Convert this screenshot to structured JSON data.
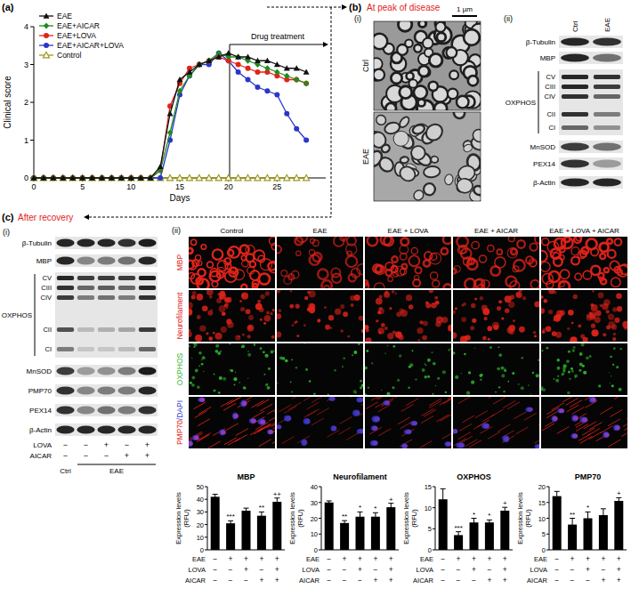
{
  "chart_data": [
    {
      "type": "line",
      "x_label": "Days",
      "y_label": "Clinical score",
      "x": [
        0,
        1,
        2,
        3,
        4,
        5,
        6,
        7,
        8,
        9,
        10,
        11,
        12,
        13,
        14,
        15,
        16,
        17,
        18,
        19,
        20,
        21,
        22,
        23,
        24,
        25,
        26,
        27,
        28
      ],
      "xlim": [
        0,
        30
      ],
      "xticks": [
        0,
        5,
        10,
        15,
        20,
        25
      ],
      "ylim": [
        0,
        4
      ],
      "yticks": [
        0,
        1,
        2,
        3,
        4
      ],
      "legend": "top-left",
      "annotations": [
        "Drug treatment"
      ],
      "series": [
        {
          "name": "EAE",
          "color": "#111111",
          "marker": "triangle",
          "values": [
            0,
            0,
            0,
            0,
            0,
            0,
            0,
            0,
            0,
            0,
            0,
            0,
            0,
            0.3,
            1.7,
            2.6,
            2.8,
            3.0,
            3.1,
            3.2,
            3.3,
            3.2,
            3.2,
            3.1,
            3.1,
            3.0,
            2.9,
            2.9,
            2.8
          ]
        },
        {
          "name": "EAE+AICAR",
          "color": "#1e8c1e",
          "marker": "diamond",
          "values": [
            0,
            0,
            0,
            0,
            0,
            0,
            0,
            0,
            0,
            0,
            0,
            0,
            0,
            0.2,
            1.2,
            2.3,
            2.7,
            3.0,
            3.1,
            3.3,
            3.2,
            3.2,
            3.1,
            3.0,
            2.9,
            2.8,
            2.7,
            2.6,
            2.5
          ]
        },
        {
          "name": "EAE+LOVA",
          "color": "#e2231a",
          "marker": "circle",
          "values": [
            0,
            0,
            0,
            0,
            0,
            0,
            0,
            0,
            0,
            0,
            0,
            0,
            0,
            0.2,
            1.9,
            2.5,
            2.9,
            3.0,
            3.1,
            3.2,
            3.1,
            3.0,
            2.9,
            2.8,
            2.8,
            2.7,
            2.6,
            2.6,
            2.5
          ]
        },
        {
          "name": "EAE+AICAR+LOVA",
          "color": "#2b36c9",
          "marker": "circle",
          "values": [
            0,
            0,
            0,
            0,
            0,
            0,
            0,
            0,
            0,
            0,
            0,
            0,
            0,
            0.0,
            1.0,
            2.2,
            2.7,
            3.0,
            3.0,
            3.3,
            3.1,
            2.8,
            2.6,
            2.4,
            2.3,
            2.2,
            1.7,
            1.3,
            1.0
          ]
        },
        {
          "name": "Control",
          "color": "#9a9a1e",
          "marker": "triangle-open",
          "values": [
            0,
            0,
            0,
            0,
            0,
            0,
            0,
            0,
            0,
            0,
            0,
            0,
            0,
            0,
            0,
            0,
            0,
            0,
            0,
            0,
            0,
            0,
            0,
            0,
            0,
            0,
            0,
            0,
            0
          ]
        }
      ]
    },
    {
      "type": "bar",
      "title": "MBP",
      "y_label": [
        "Expression levels",
        "(RFU)"
      ],
      "categories": [
        null,
        null,
        null,
        null,
        null
      ],
      "values": [
        42,
        21,
        31,
        27,
        38
      ],
      "errors": [
        2,
        2,
        2,
        3,
        3
      ],
      "color": "#000000",
      "ylim": [
        0,
        50
      ],
      "yticks": [
        0,
        10,
        20,
        30,
        40,
        50
      ],
      "annotations": [
        null,
        "***",
        null,
        "**",
        "++"
      ],
      "conditions": [
        {
          "name": "EAE",
          "signs": [
            "−",
            "+",
            "+",
            "+",
            "+"
          ]
        },
        {
          "name": "LOVA",
          "signs": [
            "−",
            "−",
            "+",
            "−",
            "+"
          ]
        },
        {
          "name": "AICAR",
          "signs": [
            "−",
            "−",
            "−",
            "+",
            "+"
          ]
        }
      ]
    },
    {
      "type": "bar",
      "title": "Neurofilament",
      "y_label": [
        "Expression levels",
        "(RFU)"
      ],
      "categories": [
        null,
        null,
        null,
        null,
        null
      ],
      "values": [
        30,
        17,
        21,
        21,
        27
      ],
      "errors": [
        1,
        1.5,
        3,
        2.5,
        2.5
      ],
      "color": "#000000",
      "ylim": [
        0,
        40
      ],
      "yticks": [
        0,
        10,
        20,
        30,
        40
      ],
      "annotations": [
        null,
        "**",
        "*",
        "*",
        "+"
      ],
      "conditions": [
        {
          "name": "EAE",
          "signs": [
            "−",
            "+",
            "+",
            "+",
            "+"
          ]
        },
        {
          "name": "LOVA",
          "signs": [
            "−",
            "−",
            "+",
            "−",
            "+"
          ]
        },
        {
          "name": "AICAR",
          "signs": [
            "−",
            "−",
            "−",
            "+",
            "+"
          ]
        }
      ]
    },
    {
      "type": "bar",
      "title": "OXPHOS",
      "y_label": [
        "Expression levels",
        "(RFU)"
      ],
      "categories": [
        null,
        null,
        null,
        null,
        null
      ],
      "values": [
        12,
        3.5,
        6.5,
        6.5,
        9.3
      ],
      "errors": [
        2.5,
        0.8,
        1,
        0.6,
        0.8
      ],
      "color": "#000000",
      "ylim": [
        0,
        15
      ],
      "yticks": [
        0,
        5,
        10,
        15
      ],
      "annotations": [
        null,
        "***",
        "*",
        "*",
        "+"
      ],
      "conditions": [
        {
          "name": "EAE",
          "signs": [
            "−",
            "+",
            "+",
            "+",
            "+"
          ]
        },
        {
          "name": "LOVA",
          "signs": [
            "−",
            "−",
            "+",
            "−",
            "+"
          ]
        },
        {
          "name": "AICAR",
          "signs": [
            "−",
            "−",
            "−",
            "+",
            "+"
          ]
        }
      ]
    },
    {
      "type": "bar",
      "title": "PMP70",
      "y_label": [
        "Expression levels",
        "(RFU)"
      ],
      "categories": [
        null,
        null,
        null,
        null,
        null
      ],
      "values": [
        17,
        8,
        10,
        11,
        15.5
      ],
      "errors": [
        1.5,
        2,
        2,
        2,
        1
      ],
      "color": "#000000",
      "ylim": [
        0,
        20
      ],
      "yticks": [
        0,
        5,
        10,
        15,
        20
      ],
      "annotations": [
        null,
        "**",
        "*",
        null,
        "+"
      ],
      "conditions": [
        {
          "name": "EAE",
          "signs": [
            "−",
            "+",
            "+",
            "+",
            "+"
          ]
        },
        {
          "name": "LOVA",
          "signs": [
            "−",
            "−",
            "+",
            "−",
            "+"
          ]
        },
        {
          "name": "AICAR",
          "signs": [
            "−",
            "−",
            "−",
            "+",
            "+"
          ]
        }
      ]
    }
  ],
  "panels": {
    "a": "(a)",
    "b": "(b)",
    "b_title": "At peak of disease",
    "c": "(c)",
    "c_title": "After recovery"
  },
  "em": {
    "label": "(i)",
    "scale": "1 µm",
    "images": [
      "Ctrl",
      "EAE"
    ]
  },
  "blot_b": {
    "label": "(ii)",
    "lanes": [
      "Ctrl",
      "EAE"
    ],
    "bands_top": [
      "β-Tubulin",
      "MBP"
    ],
    "oxphos": {
      "label": "OXPHOS",
      "complexes": [
        "CV",
        "CIII",
        "CIV",
        "CII",
        "CI"
      ]
    },
    "bands_bottom": [
      "MnSOD",
      "PEX14",
      "β-Actin"
    ]
  },
  "blot_c": {
    "label": "(i)",
    "bands_top": [
      "β-Tubulin",
      "MBP"
    ],
    "oxphos": {
      "label": "OXPHOS",
      "complexes": [
        "CV",
        "CIII",
        "CIV",
        "CII",
        "CI"
      ]
    },
    "bands_bottom": [
      "MnSOD",
      "PMP70",
      "PEX14",
      "β-Actin"
    ],
    "treatments": [
      {
        "name": "LOVA",
        "signs": [
          "−",
          "−",
          "+",
          "−",
          "+"
        ]
      },
      {
        "name": "AICAR",
        "signs": [
          "−",
          "−",
          "−",
          "+",
          "+"
        ]
      }
    ],
    "groups": [
      "Ctrl",
      "EAE"
    ]
  },
  "if": {
    "label": "(ii)",
    "columns": [
      "Control",
      "EAE",
      "EAE + LOVA",
      "EAE + AICAR",
      "EAE + LOVA + AICAR"
    ],
    "rows": [
      {
        "label": [
          "MBP"
        ],
        "colors": [
          "#e2231a"
        ]
      },
      {
        "label": [
          "Neurofilament"
        ],
        "colors": [
          "#e2231a"
        ]
      },
      {
        "label": [
          "OXPHOS"
        ],
        "colors": [
          "#2fb52f"
        ]
      },
      {
        "label": [
          "PMP70",
          "/DAPI"
        ],
        "colors": [
          "#e2231a",
          "#2b36c9"
        ]
      }
    ]
  }
}
